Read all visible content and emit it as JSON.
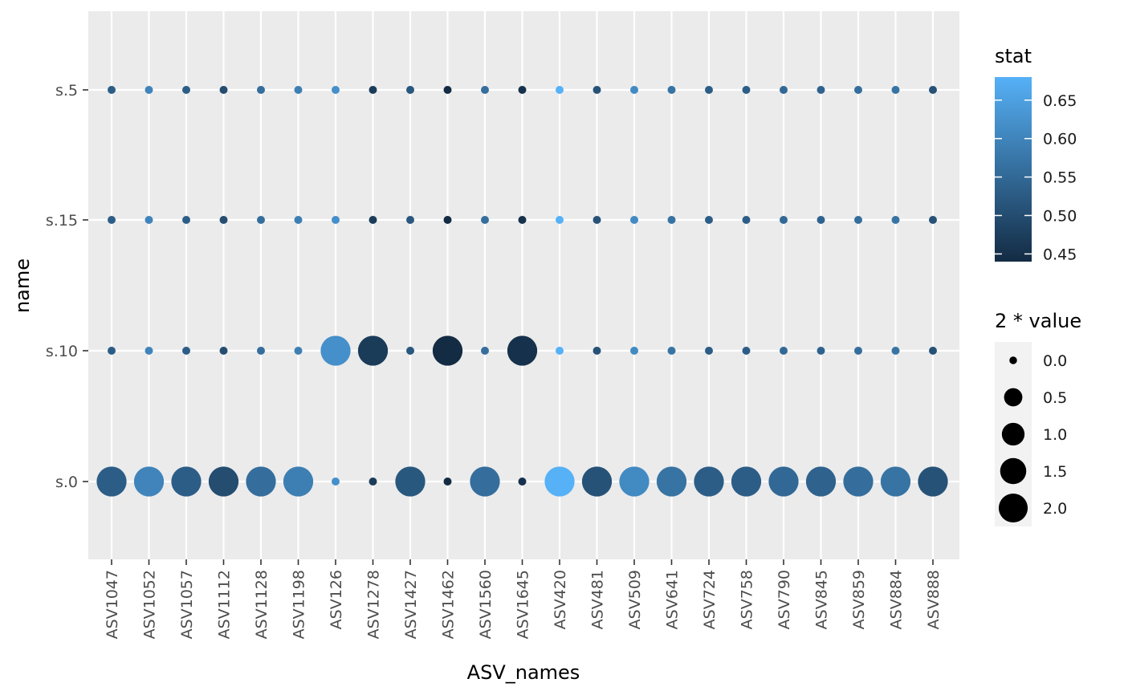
{
  "chart_data": {
    "type": "scatter",
    "xlabel": "ASV_names",
    "ylabel": "name",
    "categories": [
      "ASV1047",
      "ASV1052",
      "ASV1057",
      "ASV1112",
      "ASV1128",
      "ASV1198",
      "ASV126",
      "ASV1278",
      "ASV1427",
      "ASV1462",
      "ASV1560",
      "ASV1645",
      "ASV420",
      "ASV481",
      "ASV509",
      "ASV641",
      "ASV724",
      "ASV758",
      "ASV790",
      "ASV845",
      "ASV859",
      "ASV884",
      "ASV888"
    ],
    "y_categories": [
      "s.0",
      "s.10",
      "s.15",
      "s.5"
    ],
    "stat_by_asv": [
      0.53,
      0.6,
      0.53,
      0.5,
      0.56,
      0.59,
      0.62,
      0.47,
      0.52,
      0.44,
      0.56,
      0.45,
      0.68,
      0.51,
      0.61,
      0.57,
      0.53,
      0.53,
      0.55,
      0.54,
      0.56,
      0.57,
      0.51
    ],
    "size_series": [
      {
        "name": "s.0",
        "values": [
          1.9,
          1.9,
          1.9,
          1.9,
          1.9,
          1.9,
          0.0,
          0.0,
          1.9,
          0.0,
          1.9,
          0.0,
          1.9,
          1.9,
          1.9,
          1.9,
          1.9,
          1.9,
          1.9,
          1.9,
          1.9,
          1.9,
          1.9
        ]
      },
      {
        "name": "s.10",
        "values": [
          0.0,
          0.0,
          0.0,
          0.0,
          0.0,
          0.0,
          1.9,
          1.9,
          0.0,
          1.9,
          0.0,
          1.9,
          0.0,
          0.0,
          0.0,
          0.0,
          0.0,
          0.0,
          0.0,
          0.0,
          0.0,
          0.0,
          0.0
        ]
      },
      {
        "name": "s.15",
        "values": [
          0.0,
          0.0,
          0.0,
          0.0,
          0.0,
          0.0,
          0.0,
          0.0,
          0.0,
          0.0,
          0.0,
          0.0,
          0.0,
          0.0,
          0.0,
          0.0,
          0.0,
          0.0,
          0.0,
          0.0,
          0.0,
          0.0,
          0.0
        ]
      },
      {
        "name": "s.5",
        "values": [
          0.0,
          0.0,
          0.0,
          0.0,
          0.0,
          0.0,
          0.0,
          0.0,
          0.0,
          0.0,
          0.0,
          0.0,
          0.0,
          0.0,
          0.0,
          0.0,
          0.0,
          0.0,
          0.0,
          0.0,
          0.0,
          0.0,
          0.0
        ]
      }
    ],
    "color_legend": {
      "title": "stat",
      "ticks": [
        "0.65",
        "0.60",
        "0.55",
        "0.50",
        "0.45"
      ],
      "tick_values": [
        0.65,
        0.6,
        0.55,
        0.5,
        0.45
      ],
      "range": [
        0.44,
        0.68
      ],
      "low_color": "#132B43",
      "high_color": "#56B1F7"
    },
    "size_legend": {
      "title": "2 * value",
      "labels": [
        "0.0",
        "0.5",
        "1.0",
        "1.5",
        "2.0"
      ],
      "values": [
        0.0,
        0.5,
        1.0,
        1.5,
        2.0
      ],
      "color": "#000000"
    },
    "panel_background": "#EBEBEB",
    "grid": true
  }
}
